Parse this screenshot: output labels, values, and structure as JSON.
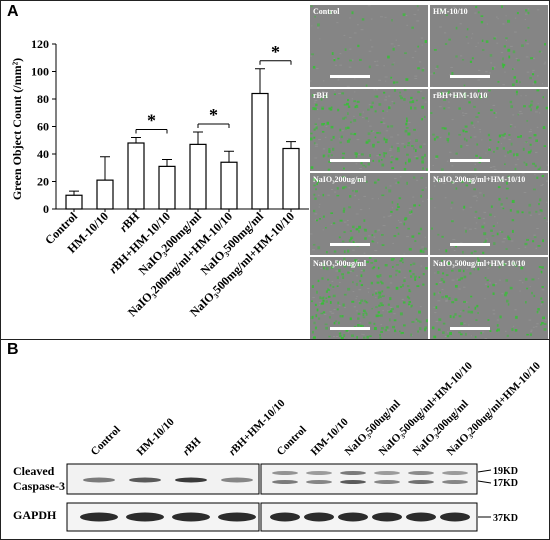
{
  "panel_a": {
    "label": "A",
    "chart_data": {
      "type": "bar",
      "title": "",
      "xlabel": "",
      "ylabel": "Green Object Count (/mm²)",
      "ylim": [
        0,
        120
      ],
      "yticks": [
        0,
        20,
        40,
        60,
        80,
        100,
        120
      ],
      "categories": [
        "Control",
        "HM-10/10",
        "rBH",
        "rBH+HM-10/10",
        "NaIO₃200mg/ml",
        "NaIO₃200mg/ml+HM-10/10",
        "NaIO₃500mg/ml",
        "NaIO₃500mg/ml+HM-10/10"
      ],
      "values": [
        10,
        21,
        48,
        31,
        47,
        34,
        84,
        44
      ],
      "errors": [
        3,
        17,
        4,
        5,
        9,
        8,
        18,
        5
      ],
      "significance": [
        {
          "from": 2,
          "to": 3,
          "mark": "*"
        },
        {
          "from": 4,
          "to": 5,
          "mark": "*"
        },
        {
          "from": 6,
          "to": 7,
          "mark": "*"
        }
      ],
      "grid": false,
      "bar_color": "#ffffff",
      "edge_color": "#000000"
    },
    "micrographs": [
      {
        "label": "Control",
        "density": 0.05
      },
      {
        "label": "HM-10/10",
        "density": 0.14
      },
      {
        "label": "rBH",
        "density": 0.55
      },
      {
        "label": "rBH+HM-10/10",
        "density": 0.32
      },
      {
        "label": "NaIO₃200ug/ml",
        "density": 0.3
      },
      {
        "label": "NaIO₃200ug/ml+HM-10/10",
        "density": 0.2
      },
      {
        "label": "NaIO₃500ug/ml",
        "density": 0.75
      },
      {
        "label": "NaIO₃500ug/ml+HM-10/10",
        "density": 0.35
      }
    ]
  },
  "panel_b": {
    "label": "B",
    "left_lanes": [
      "Control",
      "HM-10/10",
      "rBH",
      "rBH+HM-10/10"
    ],
    "right_lanes": [
      "Control",
      "HM-10/10",
      "NaIO₃500ug/ml",
      "NaIO₃500ug/ml+HM-10/10",
      "NaIO₃200ug/ml",
      "NaIO₃200ug/ml+HM-10/10"
    ],
    "rows": {
      "caspase_label_line1": "Cleaved",
      "caspase_label_line2": "Caspase-3",
      "gapdh_label": "GAPDH"
    },
    "markers": {
      "m19": "19KD",
      "m17": "17KD",
      "m37": "37KD"
    }
  },
  "colors": {
    "fluorescence": "#35c035",
    "micro_bg": "#858585",
    "band": "#1a1a1a"
  }
}
